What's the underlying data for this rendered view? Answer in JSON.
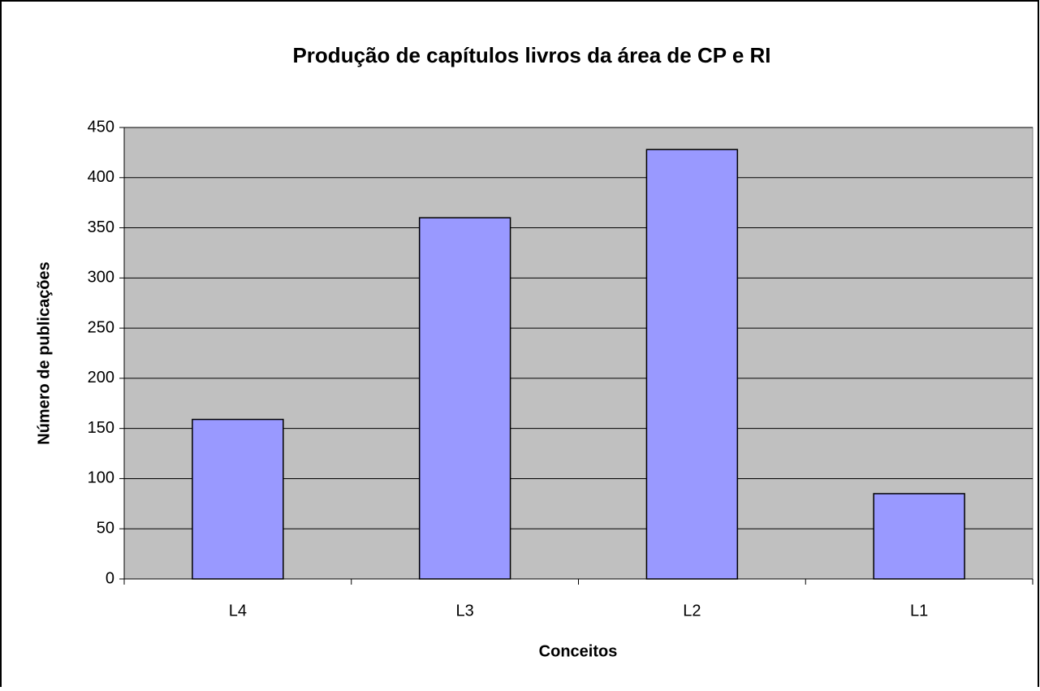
{
  "chart_data": {
    "type": "bar",
    "title": "Produção de capítulos livros da área de CP e RI",
    "x_label": "Conceitos",
    "y_label": "Número de publicações",
    "categories": [
      "L4",
      "L3",
      "L2",
      "L1"
    ],
    "values": [
      159,
      360,
      428,
      85
    ],
    "color": "#9999ff",
    "ylim": [
      0,
      450
    ],
    "yticks": [
      0,
      50,
      100,
      150,
      200,
      250,
      300,
      350,
      400,
      450
    ],
    "grid": true
  }
}
